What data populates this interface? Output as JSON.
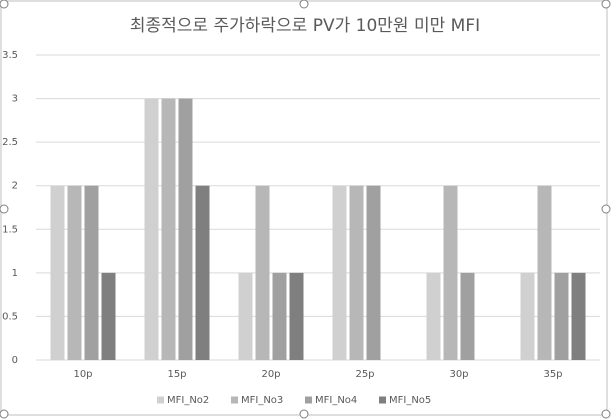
{
  "chart_data": {
    "type": "bar",
    "title": "최종적으로 주가하락으로 PV가 10만원 미만 MFI",
    "categories": [
      "10p",
      "15p",
      "20p",
      "25p",
      "30p",
      "35p"
    ],
    "series": [
      {
        "name": "MFI_No2",
        "color": "#d0d0d0",
        "values": [
          2,
          3,
          1,
          2,
          1,
          1
        ]
      },
      {
        "name": "MFI_No3",
        "color": "#b7b7b7",
        "values": [
          2,
          3,
          2,
          2,
          2,
          2
        ]
      },
      {
        "name": "MFI_No4",
        "color": "#a0a0a0",
        "values": [
          2,
          3,
          1,
          2,
          1,
          1
        ]
      },
      {
        "name": "MFI_No5",
        "color": "#7f7f7f",
        "values": [
          1,
          2,
          1,
          0,
          0,
          1
        ]
      }
    ],
    "ylim": [
      0,
      3.5
    ],
    "yticks": [
      0,
      0.5,
      1,
      1.5,
      2,
      2.5,
      3,
      3.5
    ],
    "grid": true,
    "legend": "bottom"
  }
}
